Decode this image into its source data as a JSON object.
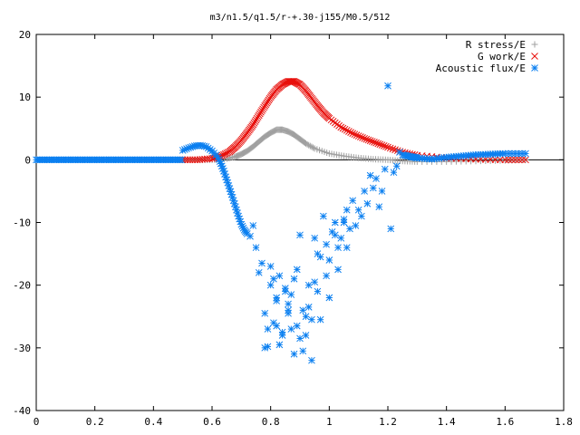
{
  "chart_data": {
    "type": "scatter",
    "title": "m3/n1.5/q1.5/r-+.30-j155/M0.5/512",
    "xlabel": "",
    "ylabel": "",
    "xlim": [
      0,
      1.8
    ],
    "ylim": [
      -40,
      20
    ],
    "xticks": [
      0,
      0.2,
      0.4,
      0.6,
      0.8,
      1.0,
      1.2,
      1.4,
      1.6,
      1.8
    ],
    "xtick_labels": [
      "0",
      "0.2",
      "0.4",
      "0.6",
      "0.8",
      "1",
      "1.2",
      "1.4",
      "1.6",
      "1.8"
    ],
    "yticks": [
      -40,
      -30,
      -20,
      -10,
      0,
      10,
      20
    ],
    "ytick_labels": [
      "-40",
      "-30",
      "-20",
      "-10",
      "0",
      "10",
      "20"
    ],
    "grid": false,
    "legend_position": "top-right",
    "series": [
      {
        "name": "R stress/E",
        "marker": "plus",
        "color": "#a0a0a0",
        "x": [
          0.5,
          0.55,
          0.6,
          0.65,
          0.68,
          0.7,
          0.72,
          0.74,
          0.76,
          0.78,
          0.8,
          0.82,
          0.84,
          0.86,
          0.88,
          0.9,
          0.92,
          0.95,
          1.0,
          1.05,
          1.1,
          1.15,
          1.2,
          1.25,
          1.3,
          1.4,
          1.5,
          1.6,
          1.67
        ],
        "y": [
          0.0,
          0.0,
          0.0,
          0.2,
          0.5,
          0.9,
          1.4,
          2.1,
          2.9,
          3.7,
          4.3,
          4.8,
          4.8,
          4.5,
          4.0,
          3.3,
          2.6,
          1.8,
          1.0,
          0.6,
          0.3,
          0.1,
          0.0,
          -0.2,
          -0.3,
          -0.3,
          -0.2,
          -0.1,
          0.0
        ]
      },
      {
        "name": "G work/E",
        "marker": "cross",
        "color": "#e8100c",
        "x": [
          0.5,
          0.55,
          0.6,
          0.63,
          0.66,
          0.68,
          0.7,
          0.72,
          0.74,
          0.76,
          0.78,
          0.8,
          0.82,
          0.84,
          0.86,
          0.88,
          0.9,
          0.92,
          0.94,
          0.96,
          0.98,
          1.0,
          1.04,
          1.08,
          1.12,
          1.16,
          1.2,
          1.25,
          1.3,
          1.4,
          1.5,
          1.6,
          1.67
        ],
        "y": [
          0.0,
          0.0,
          0.2,
          0.6,
          1.3,
          2.1,
          3.1,
          4.3,
          5.6,
          7.1,
          8.6,
          10.0,
          11.2,
          12.0,
          12.5,
          12.5,
          12.0,
          11.0,
          9.8,
          8.6,
          7.5,
          6.6,
          5.2,
          4.2,
          3.4,
          2.7,
          2.0,
          1.2,
          0.7,
          0.3,
          0.1,
          0.0,
          0.0
        ]
      },
      {
        "name": "Acoustic flux/E",
        "marker": "star",
        "color": "#0a7ff0",
        "x": [
          0.0,
          0.05,
          0.1,
          0.15,
          0.2,
          0.25,
          0.3,
          0.35,
          0.4,
          0.45,
          0.5,
          0.52,
          0.54,
          0.56,
          0.58,
          0.6,
          0.62,
          0.63,
          0.64,
          0.65,
          0.66,
          0.67,
          0.68,
          0.69,
          0.7,
          0.71,
          0.72,
          0.73,
          0.74,
          0.75,
          0.76,
          0.77,
          0.78,
          0.79,
          0.8,
          0.81,
          0.82,
          0.83,
          0.84,
          0.85,
          0.86,
          0.87,
          0.88,
          0.89,
          0.9,
          0.91,
          0.92,
          0.93,
          0.94,
          0.95,
          0.96,
          0.97,
          0.98,
          0.99,
          1.0,
          1.01,
          1.02,
          1.03,
          1.04,
          1.05,
          1.06,
          1.07,
          1.08,
          1.09,
          1.1,
          1.11,
          1.12,
          1.13,
          1.14,
          1.15,
          1.16,
          1.17,
          1.18,
          1.19,
          1.2,
          1.21,
          1.22,
          1.23,
          1.24,
          1.25,
          1.28,
          1.3,
          1.35,
          1.4,
          1.45,
          1.5,
          1.55,
          1.6,
          1.67,
          0.8,
          0.82,
          0.84,
          0.86,
          0.88,
          0.92,
          0.95,
          0.97,
          1.0,
          1.03,
          1.06,
          0.79,
          0.81,
          0.83,
          0.85,
          0.87,
          0.89,
          0.91,
          0.93,
          0.96,
          0.99,
          1.02,
          1.05,
          0.78,
          0.82,
          0.86,
          0.9,
          0.94
        ],
        "y": [
          0.0,
          0.0,
          0.0,
          0.0,
          0.0,
          0.0,
          0.0,
          0.0,
          0.0,
          0.0,
          1.5,
          1.9,
          2.2,
          2.3,
          2.1,
          1.4,
          0.4,
          -0.6,
          -1.8,
          -3.2,
          -4.6,
          -6.0,
          -7.5,
          -9.0,
          -10.3,
          -11.2,
          -11.8,
          -12.2,
          -10.5,
          -14.0,
          -18.0,
          -16.5,
          -24.5,
          -29.8,
          -20.0,
          -26.0,
          -22.5,
          -18.5,
          -28.0,
          -20.5,
          -24.0,
          -21.5,
          -19.0,
          -26.5,
          -12.0,
          -30.5,
          -25.0,
          -23.5,
          -32.0,
          -12.5,
          -21.0,
          -15.5,
          -9.0,
          -13.5,
          -16.0,
          -11.5,
          -10.0,
          -14.0,
          -12.5,
          -9.5,
          -8.0,
          -11.0,
          -6.5,
          -10.5,
          -8.0,
          -9.0,
          -5.0,
          -7.0,
          -2.5,
          -4.5,
          -3.0,
          -7.5,
          -5.0,
          -1.5,
          11.8,
          -11.0,
          -2.0,
          -1.0,
          1.2,
          0.8,
          0.5,
          0.3,
          0.1,
          0.4,
          0.6,
          0.8,
          0.9,
          1.0,
          1.0,
          -17.0,
          -22.0,
          -27.5,
          -24.5,
          -31.0,
          -28.0,
          -19.5,
          -25.5,
          -22.0,
          -17.5,
          -14.0,
          -27.0,
          -19.0,
          -29.5,
          -21.0,
          -27.0,
          -17.5,
          -24.0,
          -20.0,
          -15.0,
          -18.5,
          -12.0,
          -10.0,
          -30.0,
          -26.5,
          -23.0,
          -28.5,
          -25.5
        ]
      }
    ]
  }
}
